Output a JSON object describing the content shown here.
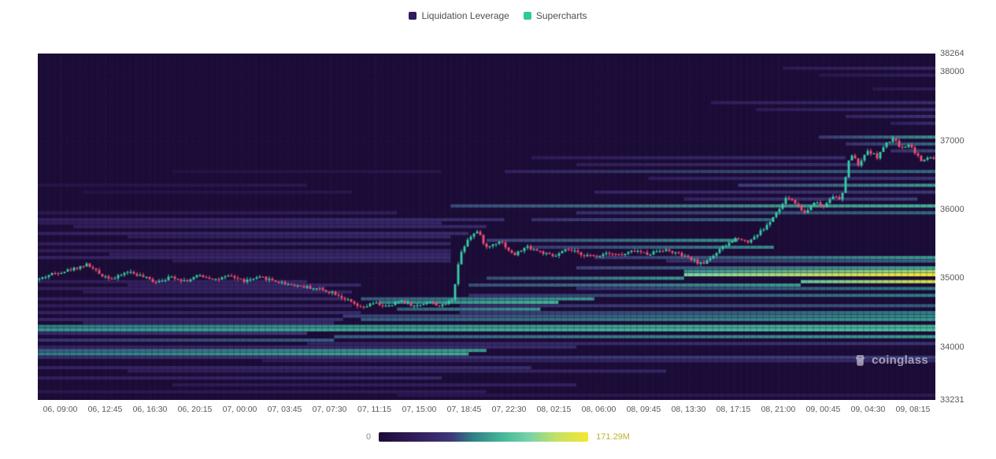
{
  "legend": {
    "items": [
      {
        "label": "Liquidation Leverage",
        "color": "#311b62"
      },
      {
        "label": "Supercharts",
        "color": "#2ec9a0"
      }
    ]
  },
  "watermark": {
    "text": "coinglass"
  },
  "chart_data": {
    "type": "heatmap",
    "series": [
      {
        "name": "Liquidation Leverage",
        "type": "heatmap"
      },
      {
        "name": "Supercharts",
        "type": "candlestick"
      }
    ],
    "x_ticks": [
      "06, 09:00",
      "06, 12:45",
      "06, 16:30",
      "06, 20:15",
      "07, 00:00",
      "07, 03:45",
      "07, 07:30",
      "07, 11:15",
      "07, 15:00",
      "07, 18:45",
      "07, 22:30",
      "08, 02:15",
      "08, 06:00",
      "08, 09:45",
      "08, 13:30",
      "08, 17:15",
      "08, 21:00",
      "09, 00:45",
      "09, 04:30",
      "09, 08:15"
    ],
    "y_ticks": [
      "38264",
      "38000",
      "37000",
      "36000",
      "35000",
      "34000",
      "33231"
    ],
    "y_min": 33231,
    "y_max": 38264,
    "colorbar": {
      "min_label": "0",
      "max_label": "171.29M",
      "max_value_m": 171.29,
      "min_label_color": "#8a8a8a",
      "max_label_color": "#bdb32c"
    },
    "colormap_stops": [
      [
        0.0,
        "#1c0c38"
      ],
      [
        0.2,
        "#34205f"
      ],
      [
        0.35,
        "#3e3a78"
      ],
      [
        0.45,
        "#2f7f86"
      ],
      [
        0.6,
        "#47bb99"
      ],
      [
        0.72,
        "#79d2a8"
      ],
      [
        0.85,
        "#c3e263"
      ],
      [
        1.0,
        "#f6e62f"
      ]
    ],
    "grid_color": "rgba(255,255,255,0.07)",
    "candle_up_color": "#35cfa4",
    "candle_down_color": "#ef4f72",
    "candle_count": 285,
    "bands": [
      [
        38050,
        0.83,
        1.0,
        0.15,
        0.25
      ],
      [
        37950,
        0.87,
        1.0,
        0.12,
        0.2
      ],
      [
        37750,
        0.93,
        1.0,
        0.12,
        0.18
      ],
      [
        37550,
        0.75,
        1.0,
        0.18,
        0.28
      ],
      [
        37450,
        0.8,
        1.0,
        0.16,
        0.28
      ],
      [
        37350,
        0.9,
        1.0,
        0.22,
        0.32
      ],
      [
        37250,
        0.95,
        1.0,
        0.18,
        0.28
      ],
      [
        37050,
        0.87,
        1.0,
        0.32,
        0.5
      ],
      [
        36950,
        0.9,
        1.0,
        0.28,
        0.42
      ],
      [
        36850,
        0.95,
        1.0,
        0.28,
        0.38
      ],
      [
        36750,
        0.55,
        0.9,
        0.16,
        0.28
      ],
      [
        36650,
        0.6,
        0.92,
        0.18,
        0.3
      ],
      [
        36550,
        0.52,
        1.0,
        0.2,
        0.42
      ],
      [
        36550,
        0.15,
        0.45,
        0.07,
        0.11
      ],
      [
        36450,
        0.68,
        1.0,
        0.18,
        0.32
      ],
      [
        36350,
        0.78,
        1.0,
        0.35,
        0.52
      ],
      [
        36350,
        0.0,
        0.3,
        0.08,
        0.13
      ],
      [
        36250,
        0.62,
        1.0,
        0.22,
        0.33
      ],
      [
        36250,
        0.05,
        0.35,
        0.07,
        0.11
      ],
      [
        36150,
        0.72,
        0.98,
        0.22,
        0.36
      ],
      [
        36050,
        0.46,
        1.0,
        0.38,
        0.58
      ],
      [
        35950,
        0.6,
        1.0,
        0.28,
        0.42
      ],
      [
        35950,
        0.0,
        0.4,
        0.13,
        0.18
      ],
      [
        35850,
        0.0,
        0.52,
        0.2,
        0.28
      ],
      [
        35850,
        0.55,
        0.82,
        0.28,
        0.42
      ],
      [
        35800,
        0.0,
        0.45,
        0.17,
        0.24
      ],
      [
        35750,
        0.04,
        0.5,
        0.19,
        0.26
      ],
      [
        35650,
        0.0,
        0.48,
        0.21,
        0.28
      ],
      [
        35600,
        0.1,
        0.46,
        0.17,
        0.24
      ],
      [
        35550,
        0.5,
        0.78,
        0.36,
        0.5
      ],
      [
        35500,
        0.0,
        0.46,
        0.19,
        0.26
      ],
      [
        35450,
        0.55,
        0.82,
        0.32,
        0.48
      ],
      [
        35400,
        0.0,
        0.46,
        0.17,
        0.23
      ],
      [
        35350,
        0.08,
        0.46,
        0.19,
        0.26
      ],
      [
        35300,
        0.0,
        0.46,
        0.21,
        0.28
      ],
      [
        35300,
        0.62,
        1.0,
        0.32,
        0.52
      ],
      [
        35250,
        0.15,
        0.46,
        0.17,
        0.24
      ],
      [
        35250,
        0.7,
        1.0,
        0.28,
        0.42
      ],
      [
        35150,
        0.6,
        1.0,
        0.36,
        0.55
      ],
      [
        35100,
        0.72,
        1.0,
        0.5,
        0.8
      ],
      [
        35050,
        0.72,
        1.0,
        0.72,
        1.0
      ],
      [
        35000,
        0.5,
        0.72,
        0.38,
        0.52
      ],
      [
        34950,
        0.85,
        1.0,
        0.65,
        0.92
      ],
      [
        34950,
        0.0,
        0.3,
        0.17,
        0.24
      ],
      [
        34900,
        0.48,
        0.85,
        0.38,
        0.52
      ],
      [
        34900,
        0.1,
        0.36,
        0.19,
        0.26
      ],
      [
        34850,
        0.0,
        0.32,
        0.19,
        0.26
      ],
      [
        34850,
        0.6,
        1.0,
        0.3,
        0.45
      ],
      [
        34800,
        0.05,
        0.35,
        0.17,
        0.24
      ],
      [
        34750,
        0.48,
        1.0,
        0.3,
        0.45
      ],
      [
        34700,
        0.0,
        0.34,
        0.21,
        0.28
      ],
      [
        34700,
        0.36,
        0.62,
        0.4,
        0.52
      ],
      [
        34650,
        0.38,
        0.58,
        0.45,
        0.58
      ],
      [
        34600,
        0.0,
        0.35,
        0.17,
        0.24
      ],
      [
        34600,
        0.47,
        1.0,
        0.26,
        0.4
      ],
      [
        34550,
        0.4,
        0.56,
        0.4,
        0.52
      ],
      [
        34500,
        0.0,
        0.36,
        0.21,
        0.27
      ],
      [
        34500,
        0.47,
        1.0,
        0.3,
        0.45
      ],
      [
        34450,
        0.34,
        1.0,
        0.36,
        0.48
      ],
      [
        34400,
        0.0,
        0.34,
        0.24,
        0.31
      ],
      [
        34400,
        0.36,
        1.0,
        0.4,
        0.52
      ],
      [
        34350,
        0.05,
        0.33,
        0.19,
        0.26
      ],
      [
        34300,
        0.0,
        1.0,
        0.45,
        0.58
      ],
      [
        34250,
        0.0,
        1.0,
        0.5,
        0.62
      ],
      [
        34200,
        0.0,
        0.3,
        0.26,
        0.35
      ],
      [
        34150,
        0.33,
        1.0,
        0.4,
        0.52
      ],
      [
        34100,
        0.0,
        0.33,
        0.3,
        0.4
      ],
      [
        34050,
        0.3,
        1.0,
        0.22,
        0.32
      ],
      [
        34000,
        0.0,
        0.6,
        0.21,
        0.28
      ],
      [
        33950,
        0.0,
        0.5,
        0.4,
        0.52
      ],
      [
        33900,
        0.0,
        0.48,
        0.45,
        0.57
      ],
      [
        33850,
        0.0,
        1.0,
        0.26,
        0.36
      ],
      [
        33800,
        0.25,
        1.0,
        0.16,
        0.26
      ],
      [
        33700,
        0.0,
        0.55,
        0.21,
        0.28
      ],
      [
        33650,
        0.1,
        0.7,
        0.17,
        0.24
      ],
      [
        33550,
        0.0,
        0.45,
        0.19,
        0.26
      ],
      [
        33450,
        0.15,
        0.6,
        0.15,
        0.21
      ],
      [
        33350,
        0.0,
        0.5,
        0.12,
        0.18
      ],
      [
        33300,
        0.4,
        1.0,
        0.1,
        0.15
      ]
    ],
    "price_path": [
      [
        0.0,
        34980
      ],
      [
        0.015,
        35060
      ],
      [
        0.035,
        35120
      ],
      [
        0.055,
        35200
      ],
      [
        0.07,
        35050
      ],
      [
        0.085,
        34990
      ],
      [
        0.1,
        35100
      ],
      [
        0.115,
        35030
      ],
      [
        0.13,
        34950
      ],
      [
        0.15,
        35020
      ],
      [
        0.165,
        34960
      ],
      [
        0.18,
        35040
      ],
      [
        0.2,
        34980
      ],
      [
        0.215,
        35030
      ],
      [
        0.23,
        34960
      ],
      [
        0.25,
        35010
      ],
      [
        0.27,
        34940
      ],
      [
        0.29,
        34890
      ],
      [
        0.31,
        34850
      ],
      [
        0.33,
        34790
      ],
      [
        0.345,
        34680
      ],
      [
        0.36,
        34560
      ],
      [
        0.375,
        34640
      ],
      [
        0.39,
        34580
      ],
      [
        0.405,
        34680
      ],
      [
        0.42,
        34590
      ],
      [
        0.435,
        34660
      ],
      [
        0.45,
        34590
      ],
      [
        0.462,
        34700
      ],
      [
        0.47,
        35330
      ],
      [
        0.48,
        35600
      ],
      [
        0.49,
        35680
      ],
      [
        0.5,
        35440
      ],
      [
        0.515,
        35550
      ],
      [
        0.53,
        35330
      ],
      [
        0.545,
        35460
      ],
      [
        0.56,
        35380
      ],
      [
        0.575,
        35310
      ],
      [
        0.59,
        35420
      ],
      [
        0.605,
        35350
      ],
      [
        0.62,
        35310
      ],
      [
        0.635,
        35380
      ],
      [
        0.65,
        35330
      ],
      [
        0.665,
        35400
      ],
      [
        0.68,
        35350
      ],
      [
        0.695,
        35420
      ],
      [
        0.71,
        35370
      ],
      [
        0.725,
        35290
      ],
      [
        0.74,
        35200
      ],
      [
        0.755,
        35360
      ],
      [
        0.77,
        35510
      ],
      [
        0.78,
        35600
      ],
      [
        0.79,
        35520
      ],
      [
        0.8,
        35620
      ],
      [
        0.812,
        35760
      ],
      [
        0.825,
        35980
      ],
      [
        0.835,
        36180
      ],
      [
        0.845,
        36080
      ],
      [
        0.855,
        35940
      ],
      [
        0.865,
        36120
      ],
      [
        0.875,
        36030
      ],
      [
        0.885,
        36210
      ],
      [
        0.895,
        36120
      ],
      [
        0.905,
        36820
      ],
      [
        0.915,
        36640
      ],
      [
        0.925,
        36860
      ],
      [
        0.935,
        36760
      ],
      [
        0.945,
        36950
      ],
      [
        0.955,
        37040
      ],
      [
        0.962,
        36870
      ],
      [
        0.97,
        36960
      ],
      [
        0.978,
        36820
      ],
      [
        0.986,
        36680
      ],
      [
        0.993,
        36770
      ],
      [
        1.0,
        36720
      ]
    ]
  }
}
